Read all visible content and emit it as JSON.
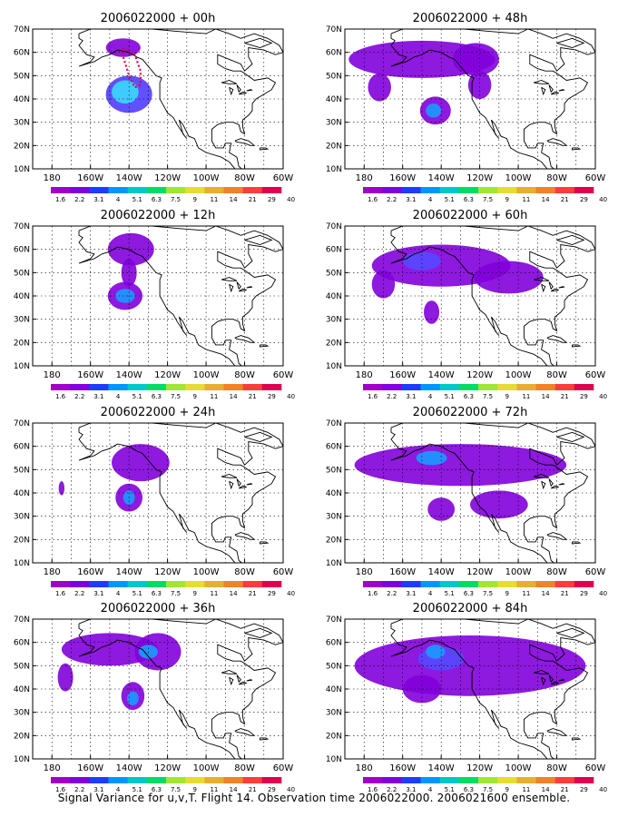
{
  "panels": [
    {
      "title": "2006022000 + 00h",
      "blobs": [
        {
          "lon": -140,
          "lat": 42,
          "rx": 12,
          "ry": 8,
          "level": 2
        },
        {
          "lon": -142,
          "lat": 43,
          "rx": 7,
          "ry": 5,
          "level": 4
        },
        {
          "lon": -143,
          "lat": 62,
          "rx": 9,
          "ry": 4,
          "level": 1
        }
      ],
      "contour": {
        "color": "#e0004c",
        "points": [
          [
            -143,
            62
          ],
          [
            -137,
            59
          ],
          [
            -134,
            52
          ],
          [
            -134,
            46
          ],
          [
            -137,
            45
          ],
          [
            -140,
            50
          ],
          [
            -143,
            58
          ],
          [
            -143,
            62
          ]
        ]
      }
    },
    {
      "title": "2006022000 + 48h",
      "blobs": [
        {
          "lon": -150,
          "lat": 57,
          "rx": 38,
          "ry": 8,
          "level": 1
        },
        {
          "lon": -122,
          "lat": 57,
          "rx": 12,
          "ry": 7,
          "level": 1
        },
        {
          "lon": -143,
          "lat": 35,
          "rx": 8,
          "ry": 6,
          "level": 1
        },
        {
          "lon": -144,
          "lat": 35,
          "rx": 4,
          "ry": 3,
          "level": 3
        },
        {
          "lon": -172,
          "lat": 45,
          "rx": 6,
          "ry": 6,
          "level": 1
        },
        {
          "lon": -120,
          "lat": 46,
          "rx": 6,
          "ry": 6,
          "level": 1
        }
      ]
    },
    {
      "title": "2006022000 + 12h",
      "blobs": [
        {
          "lon": -139,
          "lat": 60,
          "rx": 12,
          "ry": 7,
          "level": 1
        },
        {
          "lon": -142,
          "lat": 40,
          "rx": 9,
          "ry": 6,
          "level": 1
        },
        {
          "lon": -142,
          "lat": 40,
          "rx": 5,
          "ry": 3,
          "level": 3
        },
        {
          "lon": -140,
          "lat": 50,
          "rx": 4,
          "ry": 6,
          "level": 1
        }
      ]
    },
    {
      "title": "2006022000 + 60h",
      "blobs": [
        {
          "lon": -140,
          "lat": 53,
          "rx": 36,
          "ry": 9,
          "level": 1
        },
        {
          "lon": -105,
          "lat": 48,
          "rx": 18,
          "ry": 7,
          "level": 1
        },
        {
          "lon": -150,
          "lat": 55,
          "rx": 10,
          "ry": 4,
          "level": 2
        },
        {
          "lon": -145,
          "lat": 33,
          "rx": 4,
          "ry": 5,
          "level": 1
        },
        {
          "lon": -170,
          "lat": 45,
          "rx": 6,
          "ry": 6,
          "level": 1
        }
      ]
    },
    {
      "title": "2006022000 + 24h",
      "blobs": [
        {
          "lon": -134,
          "lat": 53,
          "rx": 15,
          "ry": 8,
          "level": 1
        },
        {
          "lon": -140,
          "lat": 38,
          "rx": 7,
          "ry": 6,
          "level": 1
        },
        {
          "lon": -140,
          "lat": 38,
          "rx": 3,
          "ry": 3,
          "level": 3
        },
        {
          "lon": -175,
          "lat": 42,
          "rx": 1.5,
          "ry": 3,
          "level": 1
        }
      ]
    },
    {
      "title": "2006022000 + 72h",
      "blobs": [
        {
          "lon": -130,
          "lat": 52,
          "rx": 55,
          "ry": 9,
          "level": 1
        },
        {
          "lon": -145,
          "lat": 55,
          "rx": 8,
          "ry": 3,
          "level": 3
        },
        {
          "lon": -110,
          "lat": 35,
          "rx": 15,
          "ry": 6,
          "level": 1
        },
        {
          "lon": -140,
          "lat": 33,
          "rx": 7,
          "ry": 5,
          "level": 1
        }
      ]
    },
    {
      "title": "2006022000 + 36h",
      "blobs": [
        {
          "lon": -150,
          "lat": 57,
          "rx": 25,
          "ry": 7,
          "level": 1
        },
        {
          "lon": -125,
          "lat": 56,
          "rx": 12,
          "ry": 8,
          "level": 1
        },
        {
          "lon": -130,
          "lat": 56,
          "rx": 5,
          "ry": 3,
          "level": 3
        },
        {
          "lon": -138,
          "lat": 37,
          "rx": 6,
          "ry": 6,
          "level": 1
        },
        {
          "lon": -138,
          "lat": 36,
          "rx": 3,
          "ry": 3,
          "level": 3
        },
        {
          "lon": -173,
          "lat": 45,
          "rx": 4,
          "ry": 6,
          "level": 1
        }
      ]
    },
    {
      "title": "2006022000 + 84h",
      "blobs": [
        {
          "lon": -125,
          "lat": 50,
          "rx": 60,
          "ry": 13,
          "level": 1
        },
        {
          "lon": -140,
          "lat": 53,
          "rx": 12,
          "ry": 5,
          "level": 2
        },
        {
          "lon": -143,
          "lat": 56,
          "rx": 5,
          "ry": 3,
          "level": 3
        },
        {
          "lon": -150,
          "lat": 40,
          "rx": 10,
          "ry": 6,
          "level": 1
        }
      ]
    }
  ],
  "axes": {
    "lat_labels": [
      "10N",
      "20N",
      "30N",
      "40N",
      "50N",
      "60N",
      "70N"
    ],
    "lon_labels": [
      "180",
      "160W",
      "140W",
      "120W",
      "100W",
      "80W",
      "60W"
    ]
  },
  "colorbar": {
    "labels": [
      "1.6",
      "2.2",
      "3.1",
      "4",
      "5.1",
      "6.3",
      "7.5",
      "9",
      "11",
      "14",
      "21",
      "29",
      "40"
    ],
    "colors": [
      "#a000c8",
      "#8200dc",
      "#1e3cff",
      "#0096ff",
      "#00c8c8",
      "#00dc64",
      "#a0e632",
      "#e6dc32",
      "#e6af2d",
      "#f08228",
      "#fa3c3c",
      "#e00050"
    ]
  },
  "caption": "Signal Variance for u,v,T. Flight 14. Observation time 2006022000. 2006021600 ensemble."
}
